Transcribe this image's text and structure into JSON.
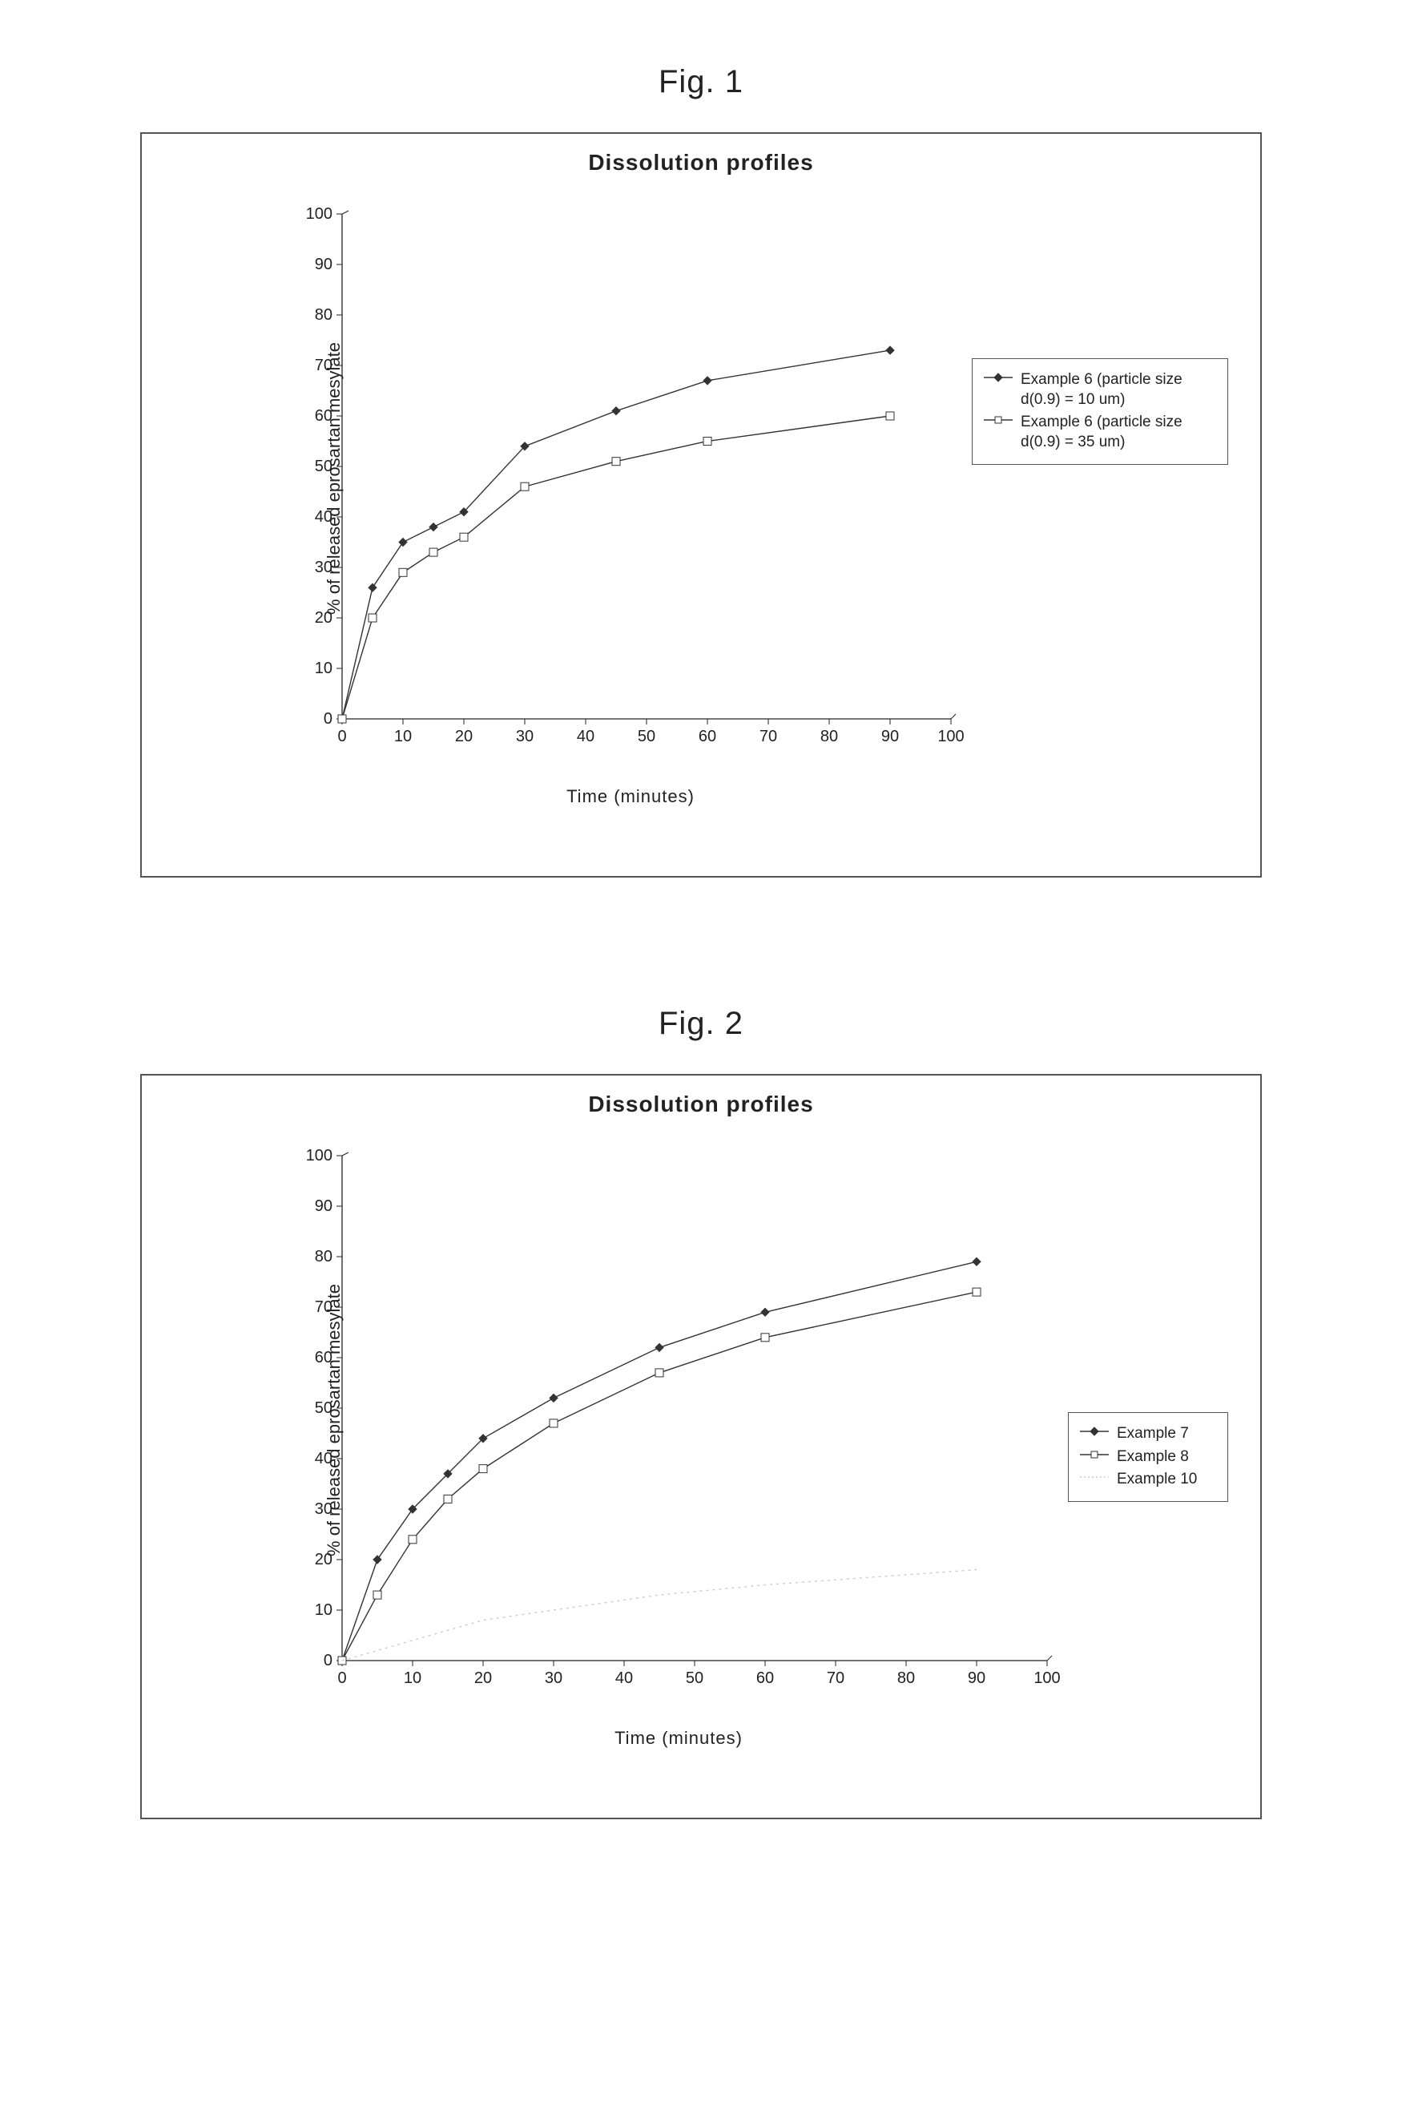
{
  "fig1": {
    "caption": "Fig. 1",
    "title": "Dissolution profiles",
    "xlabel": "Time (minutes)",
    "ylabel": "% of released eprosartan mesylate",
    "title_fontsize": 28,
    "label_fontsize": 22,
    "tick_fontsize": 20,
    "xlim": [
      0,
      100
    ],
    "ylim": [
      0,
      100
    ],
    "xtick_step": 10,
    "ytick_step": 10,
    "xticks": [
      0,
      10,
      20,
      30,
      40,
      50,
      60,
      70,
      80,
      90,
      100
    ],
    "yticks": [
      0,
      10,
      20,
      30,
      40,
      50,
      60,
      70,
      80,
      90,
      100
    ],
    "axis_color": "#222222",
    "background_color": "#ffffff",
    "border_color": "#555555",
    "line_width": 1.4,
    "marker_size": 5,
    "series": [
      {
        "label": "Example 6 (particle size d(0.9) = 10 um)",
        "marker": "diamond",
        "marker_fill": "#333333",
        "line_color": "#333333",
        "x": [
          0,
          5,
          10,
          15,
          20,
          30,
          45,
          60,
          90
        ],
        "y": [
          0,
          26,
          35,
          38,
          41,
          54,
          61,
          67,
          73
        ]
      },
      {
        "label": "Example 6 (particle size d(0.9) = 35 um)",
        "marker": "square",
        "marker_fill": "#ffffff",
        "line_color": "#333333",
        "x": [
          0,
          5,
          10,
          15,
          20,
          30,
          45,
          60,
          90
        ],
        "y": [
          0,
          20,
          29,
          33,
          36,
          46,
          51,
          55,
          60
        ]
      }
    ]
  },
  "fig2": {
    "caption": "Fig. 2",
    "title": "Dissolution profiles",
    "xlabel": "Time (minutes)",
    "ylabel": "% of released eprosartan mesylate",
    "title_fontsize": 28,
    "label_fontsize": 22,
    "tick_fontsize": 20,
    "xlim": [
      0,
      100
    ],
    "ylim": [
      0,
      100
    ],
    "xtick_step": 10,
    "ytick_step": 10,
    "xticks": [
      0,
      10,
      20,
      30,
      40,
      50,
      60,
      70,
      80,
      90,
      100
    ],
    "yticks": [
      0,
      10,
      20,
      30,
      40,
      50,
      60,
      70,
      80,
      90,
      100
    ],
    "axis_color": "#222222",
    "background_color": "#ffffff",
    "border_color": "#555555",
    "line_width": 1.4,
    "marker_size": 5,
    "series": [
      {
        "label": "Example 7",
        "marker": "diamond",
        "marker_fill": "#333333",
        "line_color": "#333333",
        "x": [
          0,
          5,
          10,
          15,
          20,
          30,
          45,
          60,
          90
        ],
        "y": [
          0,
          20,
          30,
          37,
          44,
          52,
          62,
          69,
          79
        ]
      },
      {
        "label": "Example 8",
        "marker": "square",
        "marker_fill": "#ffffff",
        "line_color": "#333333",
        "x": [
          0,
          5,
          10,
          15,
          20,
          30,
          45,
          60,
          90
        ],
        "y": [
          0,
          13,
          24,
          32,
          38,
          47,
          57,
          64,
          73
        ]
      },
      {
        "label": "Example 10",
        "marker": "none",
        "marker_fill": "#cccccc",
        "line_color": "#cccccc",
        "x": [
          0,
          5,
          10,
          15,
          20,
          30,
          45,
          60,
          90
        ],
        "y": [
          0,
          2,
          4,
          6,
          8,
          10,
          13,
          15,
          18
        ]
      }
    ]
  }
}
